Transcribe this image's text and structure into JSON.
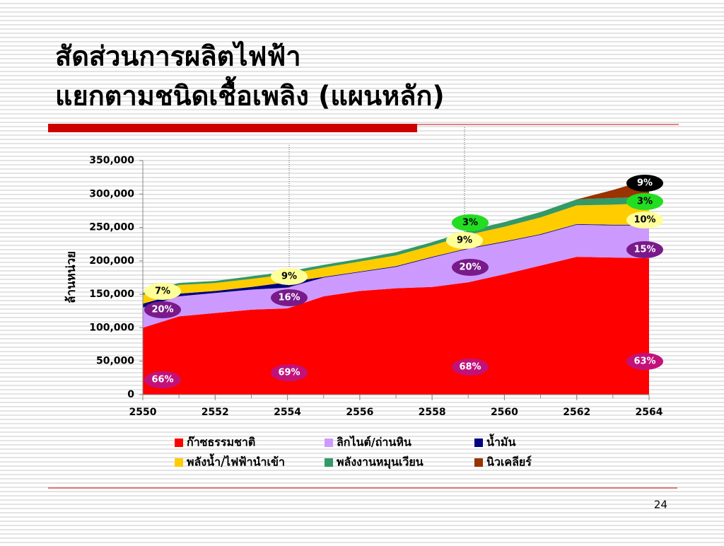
{
  "chart_data": {
    "type": "stacked-area",
    "title_lines": [
      "สัดส่วนการผลิตไฟฟ้า",
      "แยกตามชนิดเชื้อเพลิง (แผนหลัก)"
    ],
    "y_label": "ล้านหน่วย",
    "x": [
      2550,
      2551,
      2552,
      2553,
      2554,
      2555,
      2556,
      2557,
      2558,
      2559,
      2560,
      2561,
      2562,
      2563,
      2564
    ],
    "xlim": [
      2550,
      2564
    ],
    "xticks": [
      2550,
      2552,
      2554,
      2556,
      2558,
      2560,
      2562,
      2564
    ],
    "ylim": [
      0,
      350000
    ],
    "yticks": [
      0,
      {
        "value": 50000,
        "label": "50,000"
      },
      {
        "value": 100000,
        "label": "100,000"
      },
      {
        "value": 150000,
        "label": "150,000"
      },
      {
        "value": 200000,
        "label": "200,000"
      },
      {
        "value": 250000,
        "label": "250,000"
      },
      {
        "value": 300000,
        "label": "300,000"
      },
      {
        "value": 350000,
        "label": "350,000"
      }
    ],
    "series": [
      {
        "name": "ก๊าซธรรมชาติ",
        "color": "#ff0000",
        "values": [
          100000,
          117000,
          122000,
          127000,
          129000,
          147000,
          155000,
          159000,
          161000,
          168000,
          180000,
          193000,
          206000,
          205000,
          204000
        ]
      },
      {
        "name": "ลิกไนต์/ถ่านหิน",
        "color": "#cc99ff",
        "values": [
          30000,
          30000,
          30000,
          30000,
          31000,
          28000,
          28000,
          32000,
          44000,
          50000,
          48000,
          46000,
          48000,
          48000,
          49000
        ]
      },
      {
        "name": "น้ำมัน",
        "color": "#000080",
        "values": [
          6000,
          4000,
          3000,
          4000,
          8000,
          1000,
          1000,
          1000,
          1000,
          1000,
          1000,
          1000,
          1000,
          1000,
          1000
        ]
      },
      {
        "name": "พลังน้ำ/ไฟฟ้านำเข้า",
        "color": "#ffcc00",
        "values": [
          13000,
          13000,
          12000,
          12000,
          12000,
          14000,
          15000,
          16000,
          17000,
          20000,
          22000,
          25000,
          28000,
          30000,
          32000
        ]
      },
      {
        "name": "พลังงานหมุนเวียน",
        "color": "#339966",
        "values": [
          3000,
          3000,
          3000,
          4000,
          4000,
          4000,
          4000,
          5000,
          5000,
          6000,
          7000,
          8000,
          9000,
          10000,
          10000
        ]
      },
      {
        "name": "นิวเคลียร์",
        "color": "#993300",
        "values": [
          0,
          0,
          0,
          0,
          0,
          0,
          0,
          0,
          0,
          0,
          0,
          0,
          0,
          12000,
          26000
        ]
      }
    ],
    "annotations": [
      "66%",
      "69%",
      "68%",
      "63%",
      "20%",
      "16%",
      "20%",
      "15%",
      "7%",
      "9%",
      "9%",
      "10%",
      "3%",
      "3%",
      "9%"
    ],
    "page_number": "24"
  }
}
